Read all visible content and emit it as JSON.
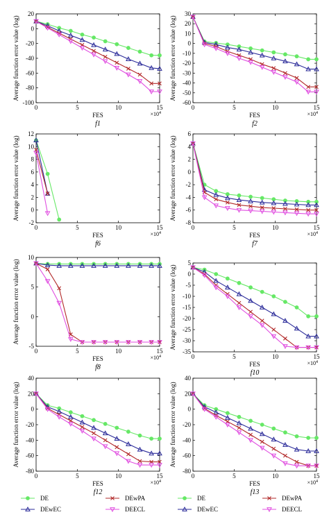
{
  "series_styles": [
    {
      "key": "DE",
      "color": "#66e866",
      "marker": "circle"
    },
    {
      "key": "DEwEC",
      "color": "#2a2a99",
      "marker": "triangle"
    },
    {
      "key": "DEwPA",
      "color": "#b22a2a",
      "marker": "cross"
    },
    {
      "key": "DEECL",
      "color": "#e04de0",
      "marker": "invtriangle"
    }
  ],
  "legends": [
    {
      "items": [
        "DE",
        "DEwEC",
        "DEwPA",
        "DEECL"
      ]
    },
    {
      "items": [
        "DE",
        "DEwEC",
        "DEwPA",
        "DEECL"
      ]
    }
  ],
  "chart_data": [
    {
      "id": "f1",
      "type": "line",
      "sublabel": "f1",
      "ylabel": "Average function error value (log)",
      "xlabel": "FES",
      "xlim": [
        0,
        15
      ],
      "ylim": [
        -100,
        20
      ],
      "yticks": [
        -100,
        -80,
        -60,
        -40,
        -20,
        0,
        20
      ],
      "xticks": [
        0,
        5,
        10,
        15
      ],
      "xexp": "×10^4",
      "x": [
        0,
        1.4,
        2.8,
        4.2,
        5.6,
        7,
        8.4,
        9.8,
        11.2,
        12.6,
        14,
        15
      ],
      "series": [
        {
          "name": "DE",
          "values": [
            10,
            6,
            1,
            -3,
            -8,
            -12,
            -17,
            -21,
            -26,
            -31,
            -36,
            -36
          ]
        },
        {
          "name": "DEwEC",
          "values": [
            10,
            4,
            -3,
            -9,
            -15,
            -22,
            -28,
            -34,
            -41,
            -47,
            -53,
            -54
          ]
        },
        {
          "name": "DEwPA",
          "values": [
            10,
            2,
            -6,
            -14,
            -22,
            -30,
            -38,
            -46,
            -54,
            -62,
            -74,
            -74
          ]
        },
        {
          "name": "DEECL",
          "values": [
            10,
            1,
            -8,
            -17,
            -26,
            -35,
            -44,
            -53,
            -62,
            -71,
            -85,
            -85
          ]
        }
      ]
    },
    {
      "id": "f2",
      "type": "line",
      "sublabel": "f2",
      "ylabel": "Average function error value (log)",
      "xlabel": "FES",
      "xlim": [
        0,
        15
      ],
      "ylim": [
        -60,
        30
      ],
      "yticks": [
        -60,
        -50,
        -40,
        -30,
        -20,
        -10,
        0,
        10,
        20,
        30
      ],
      "xticks": [
        0,
        5,
        10,
        15
      ],
      "xexp": "×10^4",
      "x": [
        0,
        1.4,
        2.8,
        4.2,
        5.6,
        7,
        8.4,
        9.8,
        11.2,
        12.6,
        14,
        15
      ],
      "series": [
        {
          "name": "DE",
          "values": [
            27,
            2,
            0.5,
            -1,
            -3,
            -5,
            -7,
            -9,
            -11,
            -13,
            -16,
            -16
          ]
        },
        {
          "name": "DEwEC",
          "values": [
            27,
            1,
            -1,
            -4,
            -6,
            -9,
            -12,
            -15,
            -18,
            -21,
            -26,
            -26
          ]
        },
        {
          "name": "DEwPA",
          "values": [
            27,
            0,
            -3,
            -8,
            -12,
            -16,
            -21,
            -25,
            -30,
            -35,
            -44,
            -44
          ]
        },
        {
          "name": "DEECL",
          "values": [
            27,
            -1,
            -5,
            -10,
            -15,
            -19,
            -24,
            -29,
            -34,
            -39,
            -49,
            -49
          ]
        }
      ]
    },
    {
      "id": "f6",
      "type": "line",
      "sublabel": "f6",
      "ylabel": "Average function error value (log)",
      "xlabel": "FES",
      "xlim": [
        0,
        15
      ],
      "ylim": [
        -2,
        12
      ],
      "yticks": [
        -2,
        0,
        2,
        4,
        6,
        8,
        10,
        12
      ],
      "xticks": [
        0,
        5,
        10,
        15
      ],
      "xexp": "×10^4",
      "x": [
        0,
        1.4,
        2.8
      ],
      "series": [
        {
          "name": "DE",
          "values": [
            11,
            5.7,
            -1.5
          ]
        },
        {
          "name": "DEwEC",
          "values": [
            11,
            2.6,
            null
          ]
        },
        {
          "name": "DEwPA",
          "values": [
            9.5,
            2.6,
            null
          ]
        },
        {
          "name": "DEECL",
          "values": [
            9,
            -0.5,
            null
          ]
        }
      ]
    },
    {
      "id": "f7",
      "type": "line",
      "sublabel": "f7",
      "ylabel": "Average function error value (log)",
      "xlabel": "FES",
      "xlim": [
        0,
        15
      ],
      "ylim": [
        -8,
        6
      ],
      "yticks": [
        -8,
        -6,
        -4,
        -2,
        0,
        2,
        4,
        6
      ],
      "xticks": [
        0,
        5,
        10,
        15
      ],
      "xexp": "×10^4",
      "x": [
        0,
        1.4,
        2.8,
        4.2,
        5.6,
        7,
        8.4,
        9.8,
        11.2,
        12.6,
        14,
        15
      ],
      "series": [
        {
          "name": "DE",
          "values": [
            4.5,
            -2,
            -3,
            -3.5,
            -3.7,
            -3.9,
            -4.1,
            -4.3,
            -4.5,
            -4.6,
            -4.7,
            -4.7
          ]
        },
        {
          "name": "DEwEC",
          "values": [
            4.5,
            -2.8,
            -3.6,
            -4.1,
            -4.4,
            -4.6,
            -4.8,
            -4.9,
            -5,
            -5.1,
            -5.2,
            -5.2
          ]
        },
        {
          "name": "DEwPA",
          "values": [
            4.5,
            -3.2,
            -4.3,
            -4.8,
            -5.2,
            -5.4,
            -5.6,
            -5.7,
            -5.8,
            -5.9,
            -6,
            -6
          ]
        },
        {
          "name": "DEECL",
          "values": [
            4.5,
            -4,
            -5.3,
            -5.7,
            -6,
            -6.1,
            -6.2,
            -6.3,
            -6.4,
            -6.5,
            -6.6,
            -6.6
          ]
        }
      ]
    },
    {
      "id": "f8",
      "type": "line",
      "sublabel": "f8",
      "ylabel": "Average function error value (log)",
      "xlabel": "FES",
      "xlim": [
        0,
        15
      ],
      "ylim": [
        -5,
        10
      ],
      "yticks": [
        -5,
        0,
        5,
        10
      ],
      "xticks": [
        0,
        5,
        10,
        15
      ],
      "xexp": "×10^4",
      "x": [
        0,
        1.4,
        2.8,
        4.2,
        5.6,
        7,
        8.4,
        9.8,
        11.2,
        12.6,
        14,
        15
      ],
      "series": [
        {
          "name": "DE",
          "values": [
            9,
            8.9,
            8.9,
            8.9,
            8.9,
            8.9,
            8.9,
            8.9,
            8.9,
            8.9,
            8.9,
            8.9
          ]
        },
        {
          "name": "DEwEC",
          "values": [
            9,
            8.7,
            8.6,
            8.6,
            8.6,
            8.6,
            8.6,
            8.6,
            8.6,
            8.6,
            8.6,
            8.6
          ]
        },
        {
          "name": "DEwPA",
          "values": [
            9,
            8,
            4.8,
            -3,
            -4.3,
            -4.3,
            -4.3,
            -4.3,
            -4.3,
            -4.3,
            -4.3,
            -4.3
          ]
        },
        {
          "name": "DEECL",
          "values": [
            9,
            6,
            2.3,
            -3.8,
            -4.3,
            -4.3,
            -4.3,
            -4.3,
            -4.3,
            -4.3,
            -4.3,
            -4.3
          ]
        }
      ]
    },
    {
      "id": "f10",
      "type": "line",
      "sublabel": "f10",
      "ylabel": "Average function error value (log)",
      "xlabel": "FES",
      "xlim": [
        0,
        15
      ],
      "ylim": [
        -35,
        5
      ],
      "yticks": [
        -35,
        -30,
        -25,
        -20,
        -15,
        -10,
        -5,
        0,
        5
      ],
      "xticks": [
        0,
        5,
        10,
        15
      ],
      "xexp": "×10^4",
      "x": [
        0,
        1.4,
        2.8,
        4.2,
        5.6,
        7,
        8.4,
        9.8,
        11.2,
        12.6,
        14,
        15
      ],
      "series": [
        {
          "name": "DE",
          "values": [
            3,
            2,
            0,
            -2,
            -4,
            -6,
            -8,
            -10,
            -12.5,
            -15,
            -19,
            -19
          ]
        },
        {
          "name": "DEwEC",
          "values": [
            3,
            1,
            -3,
            -6,
            -9,
            -12,
            -15,
            -18,
            -21,
            -24.5,
            -28,
            -28
          ]
        },
        {
          "name": "DEwPA",
          "values": [
            3,
            0,
            -5,
            -9,
            -13,
            -17,
            -21,
            -25,
            -29,
            -33,
            -33,
            -33
          ]
        },
        {
          "name": "DEECL",
          "values": [
            3,
            -0.5,
            -6,
            -10,
            -15,
            -19,
            -23,
            -28,
            -32.5,
            -33,
            -33,
            -33
          ]
        }
      ]
    },
    {
      "id": "f12",
      "type": "line",
      "sublabel": "f12",
      "ylabel": "Average function error value (log)",
      "xlabel": "FES",
      "xlim": [
        0,
        15
      ],
      "ylim": [
        -80,
        40
      ],
      "yticks": [
        -80,
        -60,
        -40,
        -20,
        0,
        20,
        40
      ],
      "xticks": [
        0,
        5,
        10,
        15
      ],
      "xexp": "×10^4",
      "x": [
        0,
        1.4,
        2.8,
        4.2,
        5.6,
        7,
        8.4,
        9.8,
        11.2,
        12.6,
        14,
        15
      ],
      "series": [
        {
          "name": "DE",
          "values": [
            20,
            5,
            1,
            -4,
            -9,
            -14,
            -19,
            -24,
            -29,
            -34,
            -38,
            -38
          ]
        },
        {
          "name": "DEwEC",
          "values": [
            20,
            3,
            -3,
            -10,
            -17,
            -24,
            -31,
            -38,
            -45,
            -52,
            -57,
            -57
          ]
        },
        {
          "name": "DEwPA",
          "values": [
            20,
            1,
            -7,
            -15,
            -23,
            -31,
            -40,
            -49,
            -58,
            -67,
            -68,
            -68
          ]
        },
        {
          "name": "DEECL",
          "values": [
            20,
            0,
            -10,
            -19,
            -28,
            -38,
            -48,
            -57,
            -67,
            -72,
            -72,
            -72
          ]
        }
      ]
    },
    {
      "id": "f13",
      "type": "line",
      "sublabel": "f13",
      "ylabel": "Average function error value (log)",
      "xlabel": "FES",
      "xlim": [
        0,
        15
      ],
      "ylim": [
        -80,
        40
      ],
      "yticks": [
        -80,
        -60,
        -40,
        -20,
        0,
        20,
        40
      ],
      "xticks": [
        0,
        5,
        10,
        15
      ],
      "xexp": "×10^4",
      "x": [
        0,
        1.4,
        2.8,
        4.2,
        5.6,
        7,
        8.4,
        9.8,
        11.2,
        12.6,
        14,
        15
      ],
      "series": [
        {
          "name": "DE",
          "values": [
            20,
            5,
            0,
            -5,
            -10,
            -15,
            -20,
            -25,
            -30,
            -35,
            -37,
            -37
          ]
        },
        {
          "name": "DEwEC",
          "values": [
            20,
            3,
            -4,
            -11,
            -18,
            -25,
            -32,
            -39,
            -46,
            -52,
            -54,
            -54
          ]
        },
        {
          "name": "DEwPA",
          "values": [
            20,
            1,
            -8,
            -16,
            -24,
            -33,
            -42,
            -51,
            -60,
            -68,
            -73,
            -73
          ]
        },
        {
          "name": "DEECL",
          "values": [
            20,
            0,
            -10,
            -20,
            -30,
            -40,
            -50,
            -60,
            -70,
            -73,
            -73,
            -73
          ]
        }
      ]
    }
  ]
}
